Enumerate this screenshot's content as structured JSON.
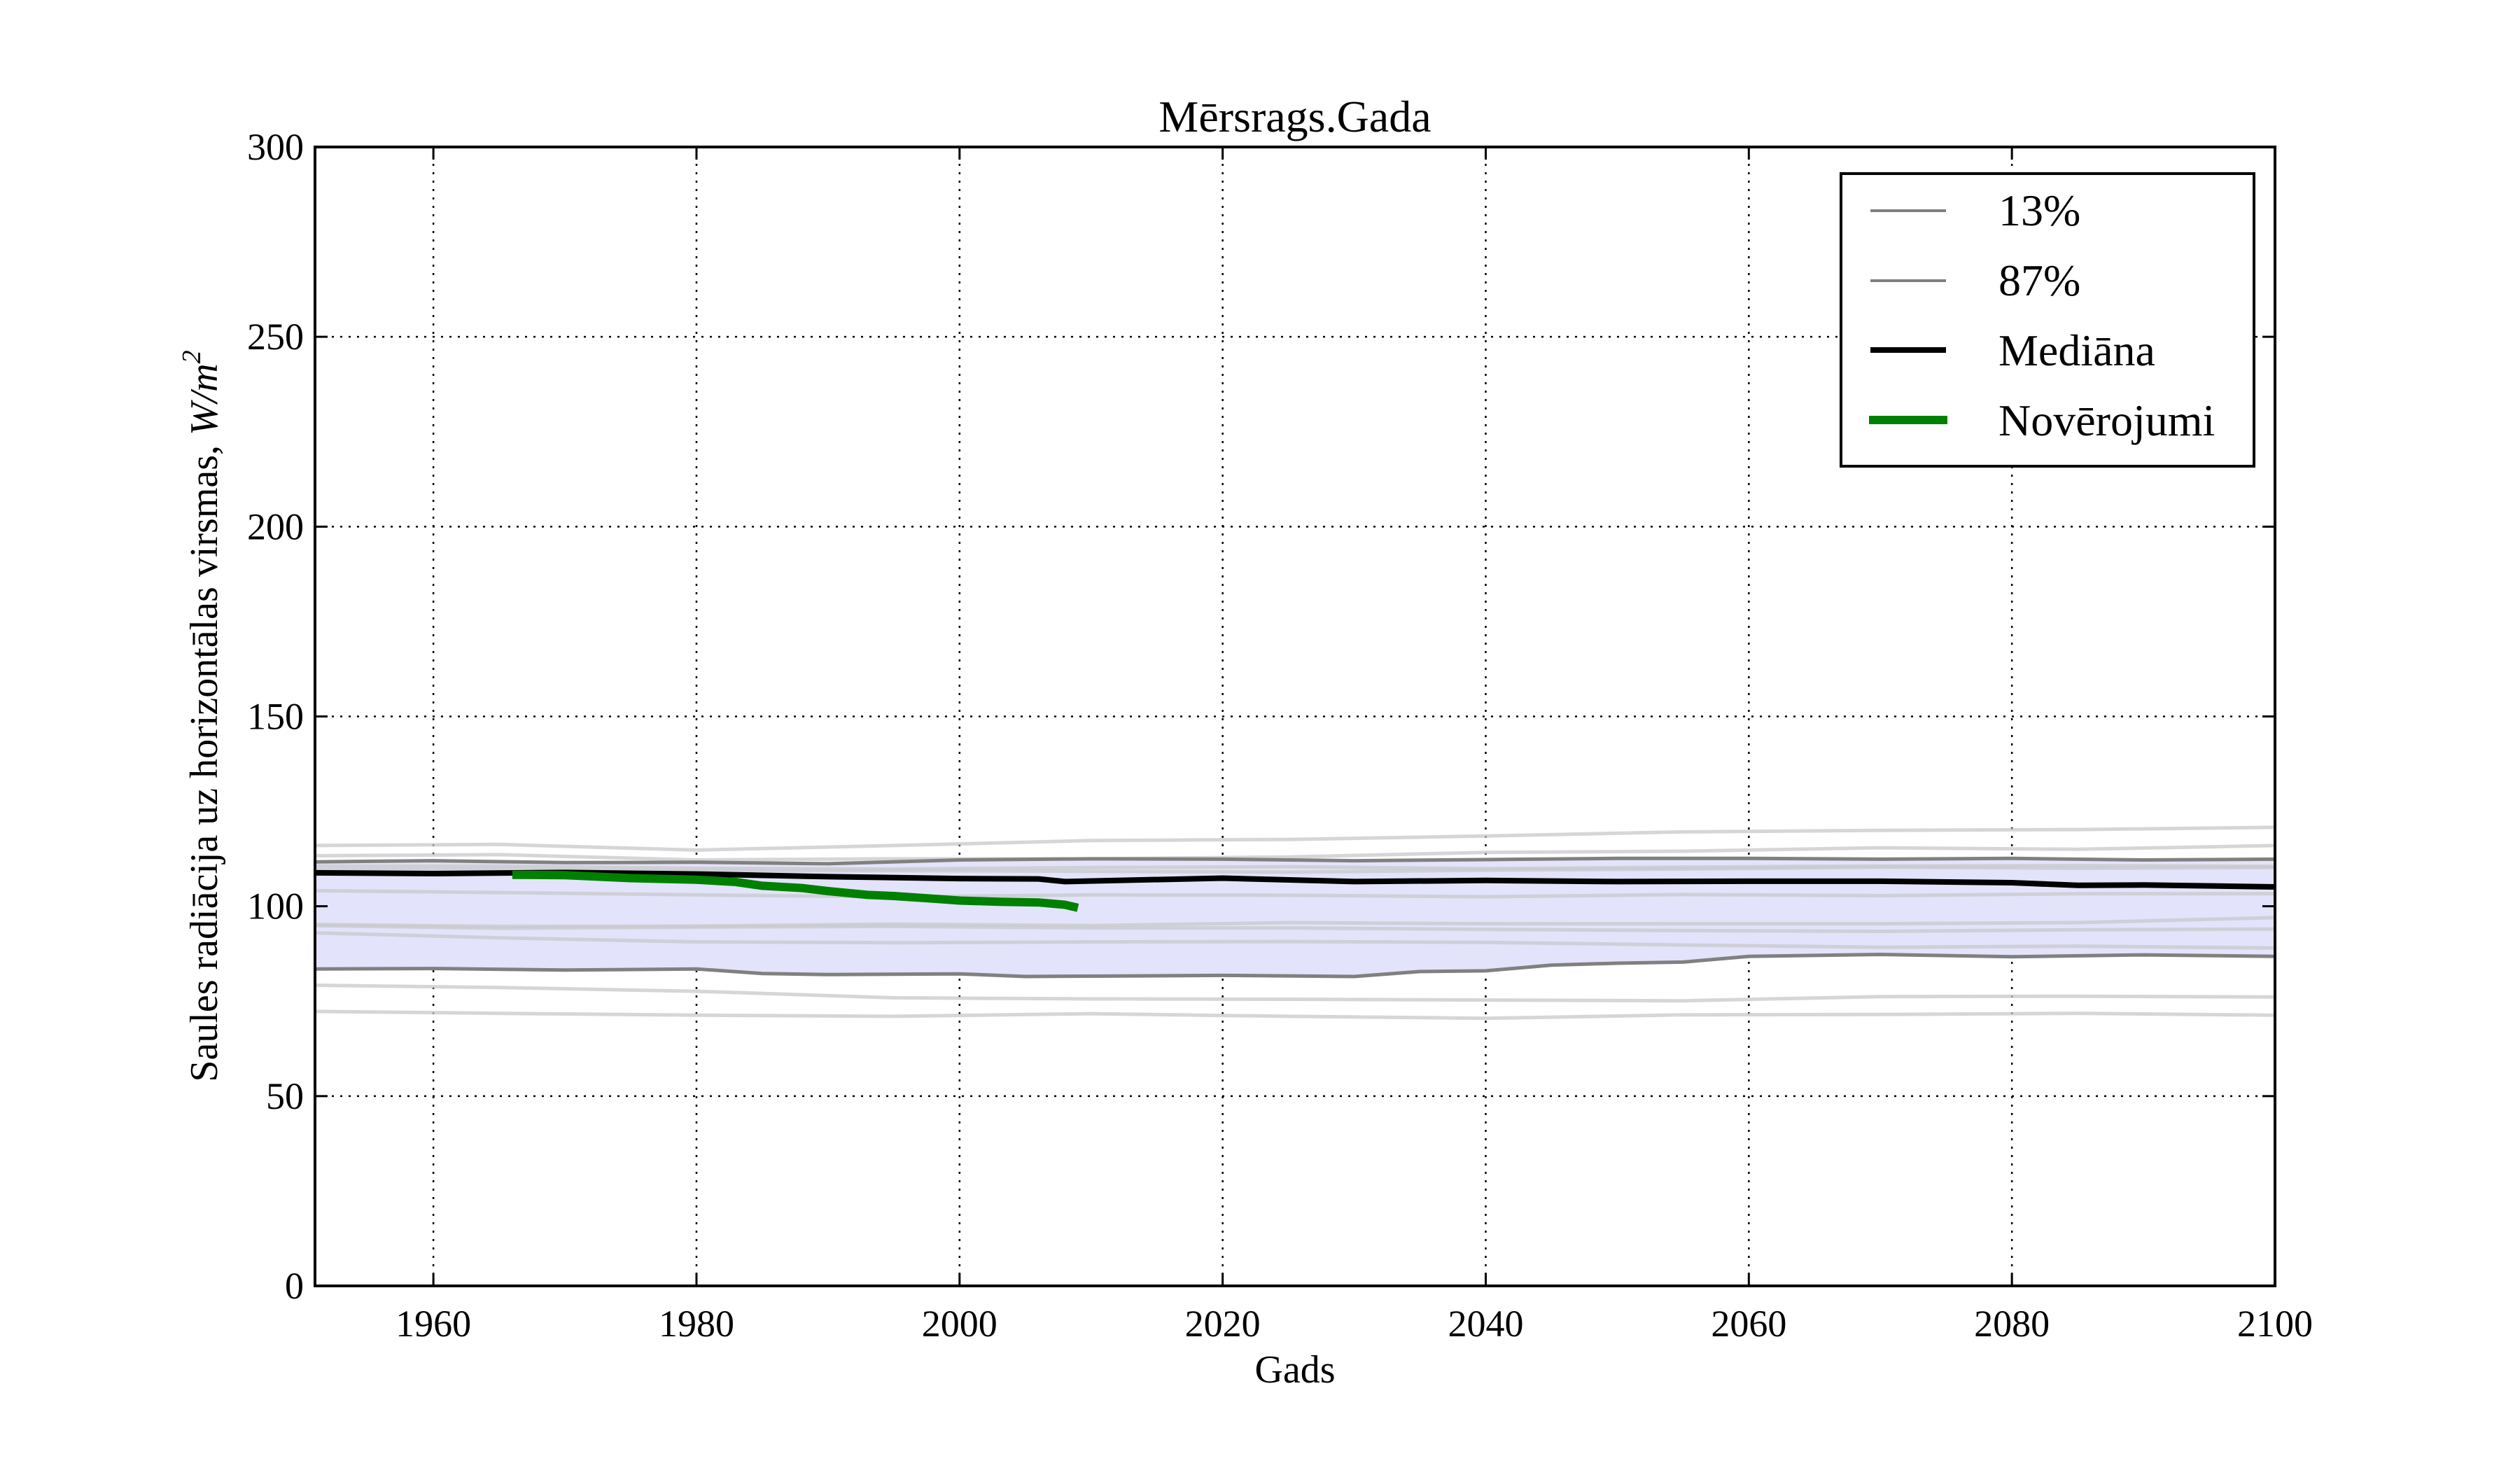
{
  "chart_data": {
    "type": "line",
    "title": "Mērsrags.Gada",
    "xlabel": "Gads",
    "ylabel": "Saules radiācija uz horizontālas virsmas, ",
    "ylabel_unit": "W/m",
    "ylabel_unit_exp": "2",
    "xlim": [
      1951,
      2100
    ],
    "ylim": [
      0,
      300
    ],
    "xticks": [
      1960,
      1980,
      2000,
      2020,
      2040,
      2060,
      2080,
      2100
    ],
    "yticks": [
      0,
      50,
      100,
      150,
      200,
      250,
      300
    ],
    "grid": true,
    "legend_position": "top-right",
    "band": {
      "lower": "13%",
      "upper": "87%",
      "color": "#e3e3fb"
    },
    "series": [
      {
        "name": "13%",
        "color": "#808080",
        "x": [
          1951,
          1960,
          1970,
          1980,
          1985,
          1990,
          2000,
          2005,
          2010,
          2020,
          2030,
          2035,
          2040,
          2045,
          2050,
          2055,
          2060,
          2070,
          2080,
          2090,
          2100
        ],
        "values": [
          83.5,
          83.6,
          83.2,
          83.5,
          82.3,
          82,
          82.2,
          81.5,
          81.6,
          81.8,
          81.5,
          82.8,
          83,
          84.5,
          85,
          85.3,
          86.8,
          87.3,
          86.7,
          87.2,
          86.8
        ]
      },
      {
        "name": "87%",
        "color": "#808080",
        "x": [
          1951,
          1960,
          1970,
          1980,
          1990,
          2000,
          2010,
          2020,
          2030,
          2040,
          2050,
          2060,
          2070,
          2080,
          2090,
          2100
        ],
        "values": [
          111.7,
          112,
          111.5,
          111.6,
          111.2,
          112.2,
          112.5,
          112.4,
          112,
          112.3,
          112.6,
          112.6,
          112.4,
          112.6,
          112.2,
          112.4
        ]
      },
      {
        "name": "Mediāna",
        "color": "#000000",
        "x": [
          1951,
          1960,
          1970,
          1980,
          1990,
          2000,
          2006,
          2008,
          2020,
          2030,
          2040,
          2050,
          2060,
          2070,
          2080,
          2085,
          2090,
          2100
        ],
        "values": [
          108.8,
          108.6,
          108.9,
          108.5,
          107.8,
          107.3,
          107.2,
          106.5,
          107.4,
          106.5,
          106.8,
          106.5,
          106.6,
          106.6,
          106.2,
          105.5,
          105.6,
          105.1
        ]
      },
      {
        "name": "Novērojumi",
        "color": "#008000",
        "x": [
          1966,
          1970,
          1975,
          1980,
          1983,
          1985,
          1988,
          1990,
          1993,
          1995,
          1998,
          2000,
          2003,
          2006,
          2008,
          2009
        ],
        "values": [
          108.3,
          108.2,
          107.4,
          107,
          106.4,
          105.4,
          104.8,
          104,
          103,
          102.7,
          102,
          101.5,
          101.2,
          101,
          100.4,
          99.6
        ]
      }
    ],
    "ensemble": {
      "color": "#c8c8cc",
      "x": [
        1951,
        1965,
        1980,
        1995,
        2010,
        2025,
        2040,
        2055,
        2070,
        2085,
        2100
      ],
      "members": [
        [
          116,
          116.3,
          114.8,
          116,
          117.3,
          117.6,
          118.5,
          119.6,
          120,
          120.2,
          120.8
        ],
        [
          113.3,
          113.6,
          112.2,
          112.5,
          112.5,
          113,
          114.2,
          114.5,
          115.4,
          115,
          116
        ],
        [
          110.6,
          110.6,
          110,
          109.8,
          110.2,
          110.4,
          109.9,
          110.3,
          110.6,
          110.7,
          110.5
        ],
        [
          109.6,
          109.8,
          109.3,
          109.4,
          109.2,
          109,
          109.5,
          109.8,
          110.3,
          110,
          110.2
        ],
        [
          104.1,
          103.6,
          103,
          102.5,
          103,
          102.9,
          102.5,
          103.1,
          102.8,
          103.3,
          103.3
        ],
        [
          95.2,
          94.7,
          94.8,
          95.3,
          94.9,
          95.7,
          95.4,
          95.4,
          95.4,
          95.7,
          97
        ],
        [
          94.9,
          94.2,
          94.5,
          94.7,
          94.3,
          94.3,
          93.9,
          93.6,
          93.4,
          93.8,
          94
        ],
        [
          93,
          91.7,
          90.6,
          90.4,
          90.6,
          90.7,
          90.5,
          89.8,
          89.2,
          89.5,
          89
        ],
        [
          79.2,
          78.6,
          77.6,
          75.9,
          75.6,
          75.5,
          75.3,
          75.1,
          76.2,
          76.3,
          76.1
        ],
        [
          72.3,
          71.8,
          71.3,
          71,
          71.7,
          71,
          70.5,
          71.4,
          71.5,
          71.8,
          71.3
        ]
      ]
    }
  }
}
